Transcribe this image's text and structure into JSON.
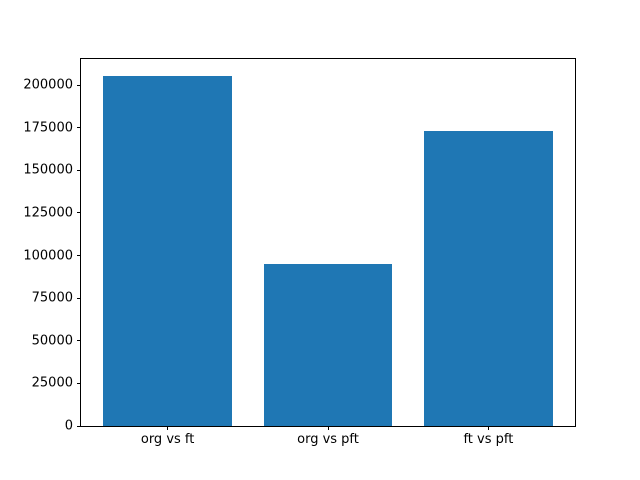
{
  "chart_data": {
    "type": "bar",
    "categories": [
      "org vs ft",
      "org vs pft",
      "ft vs pft"
    ],
    "values": [
      205000,
      95000,
      173000
    ],
    "title": "",
    "xlabel": "",
    "ylabel": "",
    "ylim": [
      0,
      215250
    ],
    "xlim": [
      -0.54,
      2.54
    ],
    "bar_width": 0.8,
    "yticks": [
      0,
      25000,
      50000,
      75000,
      100000,
      125000,
      150000,
      175000,
      200000
    ],
    "bar_color": "#1f77b4",
    "axis_color": "#000000",
    "background": "#ffffff",
    "grid": false,
    "legend": "none"
  }
}
